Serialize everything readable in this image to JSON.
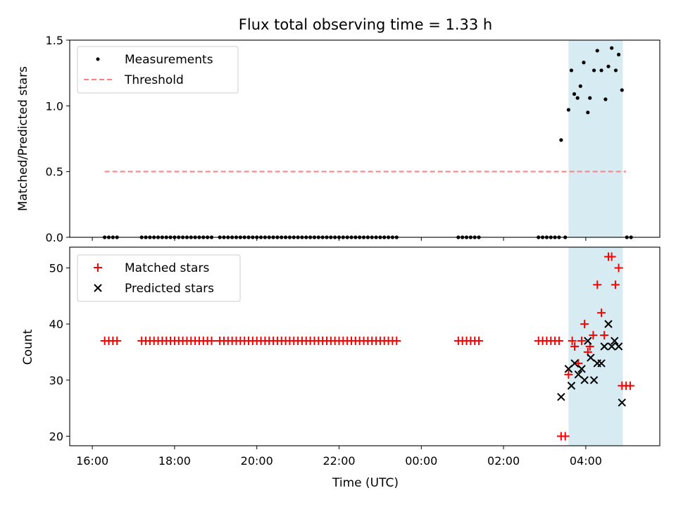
{
  "chart_data": [
    {
      "type": "scatter",
      "title": "Flux total observing time = 1.33 h",
      "xlabel": "",
      "ylabel": "Matched/Predicted stars",
      "xlim": [
        -0.55,
        13.8
      ],
      "ylim": [
        0.0,
        1.5
      ],
      "yticks": [
        0.0,
        0.5,
        1.0,
        1.5
      ],
      "ytick_labels": [
        "0.0",
        "0.5",
        "1.0",
        "1.5"
      ],
      "highlight_span": {
        "x0": 11.58,
        "x1": 12.9,
        "color": "#add8e6"
      },
      "threshold": {
        "name": "Threshold",
        "y": 0.5,
        "x0": 0.3,
        "x1": 12.98,
        "color": "#ff7f7f"
      },
      "series": [
        {
          "name": "Measurements",
          "color": "#000000",
          "marker": "dot",
          "points": [
            [
              0.3,
              0
            ],
            [
              0.4,
              0
            ],
            [
              0.5,
              0
            ],
            [
              0.6,
              0
            ],
            [
              1.2,
              0
            ],
            [
              1.3,
              0
            ],
            [
              1.4,
              0
            ],
            [
              1.5,
              0
            ],
            [
              1.6,
              0
            ],
            [
              1.7,
              0
            ],
            [
              1.8,
              0
            ],
            [
              1.9,
              0
            ],
            [
              2.0,
              0
            ],
            [
              2.1,
              0
            ],
            [
              2.2,
              0
            ],
            [
              2.3,
              0
            ],
            [
              2.4,
              0
            ],
            [
              2.5,
              0
            ],
            [
              2.6,
              0
            ],
            [
              2.7,
              0
            ],
            [
              2.8,
              0
            ],
            [
              2.9,
              0
            ],
            [
              3.1,
              0
            ],
            [
              3.2,
              0
            ],
            [
              3.3,
              0
            ],
            [
              3.4,
              0
            ],
            [
              3.5,
              0
            ],
            [
              3.6,
              0
            ],
            [
              3.7,
              0
            ],
            [
              3.8,
              0
            ],
            [
              3.9,
              0
            ],
            [
              4.0,
              0
            ],
            [
              4.1,
              0
            ],
            [
              4.2,
              0
            ],
            [
              4.3,
              0
            ],
            [
              4.4,
              0
            ],
            [
              4.5,
              0
            ],
            [
              4.6,
              0
            ],
            [
              4.7,
              0
            ],
            [
              4.8,
              0
            ],
            [
              4.9,
              0
            ],
            [
              5.0,
              0
            ],
            [
              5.1,
              0
            ],
            [
              5.2,
              0
            ],
            [
              5.3,
              0
            ],
            [
              5.4,
              0
            ],
            [
              5.5,
              0
            ],
            [
              5.6,
              0
            ],
            [
              5.7,
              0
            ],
            [
              5.8,
              0
            ],
            [
              5.9,
              0
            ],
            [
              6.0,
              0
            ],
            [
              6.1,
              0
            ],
            [
              6.2,
              0
            ],
            [
              6.3,
              0
            ],
            [
              6.4,
              0
            ],
            [
              6.5,
              0
            ],
            [
              6.6,
              0
            ],
            [
              6.7,
              0
            ],
            [
              6.8,
              0
            ],
            [
              6.9,
              0
            ],
            [
              7.0,
              0
            ],
            [
              7.1,
              0
            ],
            [
              7.2,
              0
            ],
            [
              7.3,
              0
            ],
            [
              7.4,
              0
            ],
            [
              8.9,
              0
            ],
            [
              9.0,
              0
            ],
            [
              9.1,
              0
            ],
            [
              9.2,
              0
            ],
            [
              9.3,
              0
            ],
            [
              9.4,
              0
            ],
            [
              10.85,
              0
            ],
            [
              10.95,
              0
            ],
            [
              11.05,
              0
            ],
            [
              11.15,
              0
            ],
            [
              11.25,
              0
            ],
            [
              11.35,
              0
            ],
            [
              11.5,
              0
            ],
            [
              11.4,
              0.74
            ],
            [
              11.58,
              0.97
            ],
            [
              11.65,
              1.27
            ],
            [
              11.72,
              1.09
            ],
            [
              11.8,
              1.06
            ],
            [
              11.87,
              1.15
            ],
            [
              11.95,
              1.33
            ],
            [
              12.05,
              0.95
            ],
            [
              12.1,
              1.06
            ],
            [
              12.2,
              1.27
            ],
            [
              12.28,
              1.42
            ],
            [
              12.38,
              1.27
            ],
            [
              12.48,
              1.05
            ],
            [
              12.55,
              1.3
            ],
            [
              12.63,
              1.44
            ],
            [
              12.73,
              1.27
            ],
            [
              12.8,
              1.39
            ],
            [
              12.88,
              1.12
            ],
            [
              13.0,
              0
            ],
            [
              13.1,
              0
            ]
          ]
        }
      ],
      "legend": {
        "position": "upper-left",
        "entries": [
          "Measurements",
          "Threshold"
        ]
      }
    },
    {
      "type": "scatter",
      "title": "",
      "xlabel": "Time (UTC)",
      "ylabel": "Count",
      "xlim": [
        -0.55,
        13.8
      ],
      "ylim": [
        18.3,
        53.7
      ],
      "yticks": [
        20,
        30,
        40,
        50
      ],
      "ytick_labels": [
        "20",
        "30",
        "40",
        "50"
      ],
      "xticks": [
        0,
        2,
        4,
        6,
        8,
        10,
        12
      ],
      "xtick_labels": [
        "16:00",
        "18:00",
        "20:00",
        "22:00",
        "00:00",
        "02:00",
        "04:00"
      ],
      "highlight_span": {
        "x0": 11.58,
        "x1": 12.9,
        "color": "#add8e6"
      },
      "series": [
        {
          "name": "Matched stars",
          "color": "#ff0000",
          "marker": "plus",
          "points": [
            [
              0.3,
              37
            ],
            [
              0.4,
              37
            ],
            [
              0.5,
              37
            ],
            [
              0.6,
              37
            ],
            [
              1.2,
              37
            ],
            [
              1.3,
              37
            ],
            [
              1.4,
              37
            ],
            [
              1.5,
              37
            ],
            [
              1.6,
              37
            ],
            [
              1.7,
              37
            ],
            [
              1.8,
              37
            ],
            [
              1.9,
              37
            ],
            [
              2.0,
              37
            ],
            [
              2.1,
              37
            ],
            [
              2.2,
              37
            ],
            [
              2.3,
              37
            ],
            [
              2.4,
              37
            ],
            [
              2.5,
              37
            ],
            [
              2.6,
              37
            ],
            [
              2.7,
              37
            ],
            [
              2.8,
              37
            ],
            [
              2.9,
              37
            ],
            [
              3.1,
              37
            ],
            [
              3.2,
              37
            ],
            [
              3.3,
              37
            ],
            [
              3.4,
              37
            ],
            [
              3.5,
              37
            ],
            [
              3.6,
              37
            ],
            [
              3.7,
              37
            ],
            [
              3.8,
              37
            ],
            [
              3.9,
              37
            ],
            [
              4.0,
              37
            ],
            [
              4.1,
              37
            ],
            [
              4.2,
              37
            ],
            [
              4.3,
              37
            ],
            [
              4.4,
              37
            ],
            [
              4.5,
              37
            ],
            [
              4.6,
              37
            ],
            [
              4.7,
              37
            ],
            [
              4.8,
              37
            ],
            [
              4.9,
              37
            ],
            [
              5.0,
              37
            ],
            [
              5.1,
              37
            ],
            [
              5.2,
              37
            ],
            [
              5.3,
              37
            ],
            [
              5.4,
              37
            ],
            [
              5.5,
              37
            ],
            [
              5.6,
              37
            ],
            [
              5.7,
              37
            ],
            [
              5.8,
              37
            ],
            [
              5.9,
              37
            ],
            [
              6.0,
              37
            ],
            [
              6.1,
              37
            ],
            [
              6.2,
              37
            ],
            [
              6.3,
              37
            ],
            [
              6.4,
              37
            ],
            [
              6.5,
              37
            ],
            [
              6.6,
              37
            ],
            [
              6.7,
              37
            ],
            [
              6.8,
              37
            ],
            [
              6.9,
              37
            ],
            [
              7.0,
              37
            ],
            [
              7.1,
              37
            ],
            [
              7.2,
              37
            ],
            [
              7.3,
              37
            ],
            [
              7.4,
              37
            ],
            [
              8.9,
              37
            ],
            [
              9.0,
              37
            ],
            [
              9.1,
              37
            ],
            [
              9.2,
              37
            ],
            [
              9.3,
              37
            ],
            [
              9.4,
              37
            ],
            [
              10.85,
              37
            ],
            [
              10.95,
              37
            ],
            [
              11.05,
              37
            ],
            [
              11.15,
              37
            ],
            [
              11.25,
              37
            ],
            [
              11.35,
              37
            ],
            [
              11.4,
              20
            ],
            [
              11.5,
              20
            ],
            [
              11.58,
              31
            ],
            [
              11.67,
              37
            ],
            [
              11.73,
              36
            ],
            [
              11.82,
              33
            ],
            [
              11.9,
              37
            ],
            [
              11.97,
              40
            ],
            [
              12.05,
              35
            ],
            [
              12.1,
              36
            ],
            [
              12.18,
              38
            ],
            [
              12.28,
              47
            ],
            [
              12.38,
              42
            ],
            [
              12.45,
              38
            ],
            [
              12.55,
              52
            ],
            [
              12.63,
              52
            ],
            [
              12.72,
              47
            ],
            [
              12.8,
              50
            ],
            [
              12.88,
              29
            ],
            [
              12.98,
              29
            ],
            [
              13.08,
              29
            ]
          ]
        },
        {
          "name": "Predicted stars",
          "color": "#000000",
          "marker": "x",
          "points": [
            [
              11.4,
              27
            ],
            [
              11.58,
              32
            ],
            [
              11.65,
              29
            ],
            [
              11.73,
              33
            ],
            [
              11.82,
              31
            ],
            [
              11.9,
              32
            ],
            [
              11.97,
              30
            ],
            [
              12.05,
              37
            ],
            [
              12.12,
              34
            ],
            [
              12.2,
              30
            ],
            [
              12.28,
              33
            ],
            [
              12.38,
              33
            ],
            [
              12.45,
              36
            ],
            [
              12.55,
              40
            ],
            [
              12.63,
              36
            ],
            [
              12.7,
              37
            ],
            [
              12.8,
              36
            ],
            [
              12.88,
              26
            ]
          ]
        }
      ],
      "legend": {
        "position": "upper-left",
        "entries": [
          "Matched stars",
          "Predicted stars"
        ]
      }
    }
  ]
}
